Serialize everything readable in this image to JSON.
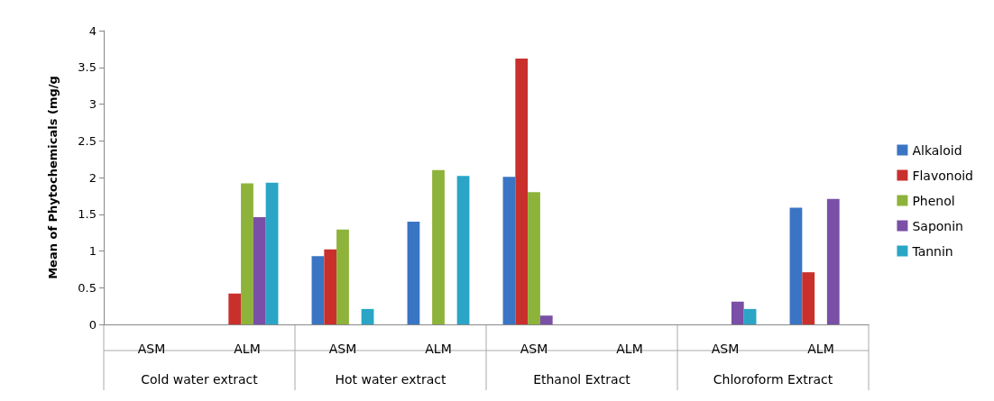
{
  "chart_data": {
    "type": "bar",
    "ylabel": "Mean of Phytochemicals (mg/g",
    "categories": [
      "ASM",
      "ALM",
      "ASM",
      "ALM",
      "ASM",
      "ALM",
      "ASM",
      "ALM"
    ],
    "annotations": [
      "Cold water extract",
      "Hot water extract",
      "Ethanol Extract",
      "Chloroform Extract"
    ],
    "series": [
      {
        "name": "Alkaloid",
        "color": "#3a75c4",
        "values": [
          null,
          null,
          0.93,
          1.4,
          2.01,
          null,
          null,
          1.59
        ]
      },
      {
        "name": "Flavonoid",
        "color": "#c9302c",
        "values": [
          null,
          0.42,
          1.02,
          null,
          3.62,
          null,
          null,
          0.71
        ]
      },
      {
        "name": "Phenol",
        "color": "#8db33a",
        "values": [
          null,
          1.92,
          1.29,
          2.1,
          1.8,
          null,
          null,
          null
        ]
      },
      {
        "name": "Saponin",
        "color": "#7a4fa6",
        "values": [
          null,
          1.46,
          null,
          null,
          0.12,
          null,
          0.31,
          1.71
        ]
      },
      {
        "name": "Tannin",
        "color": "#2aa5c6",
        "values": [
          null,
          1.93,
          0.21,
          2.02,
          null,
          null,
          0.21,
          null
        ]
      }
    ],
    "ylim": [
      0,
      4
    ],
    "yticks": [
      0,
      0.5,
      1,
      1.5,
      2,
      2.5,
      3,
      3.5,
      4
    ],
    "legend": "right"
  }
}
